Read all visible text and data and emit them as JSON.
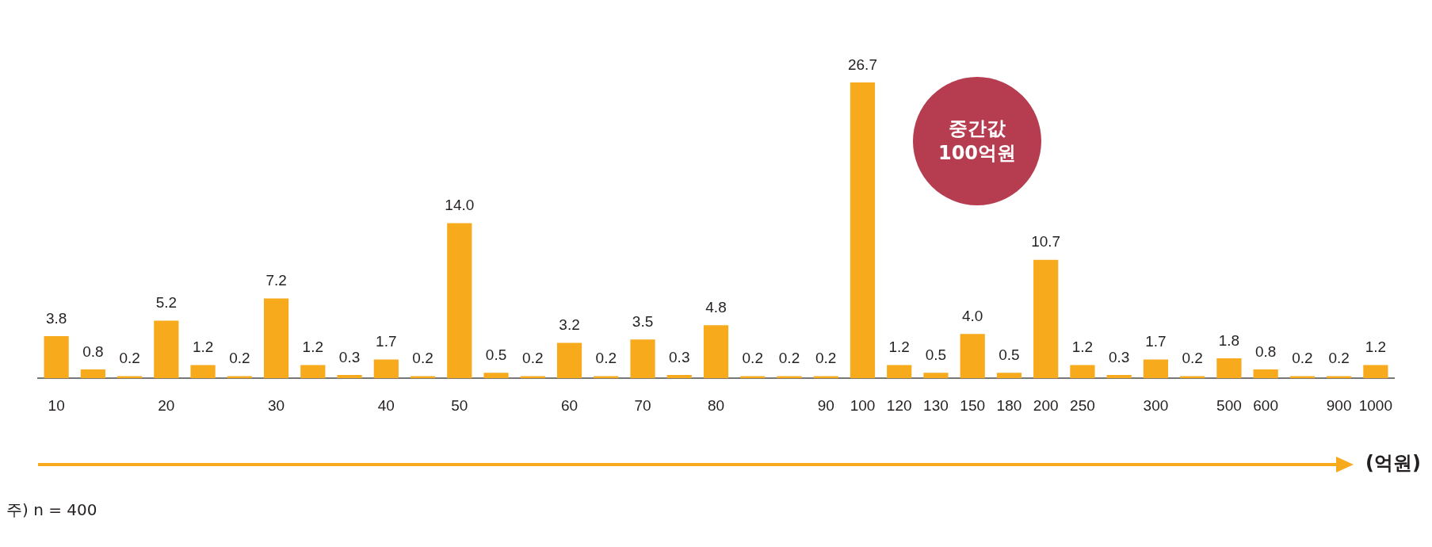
{
  "chart_data": {
    "type": "bar",
    "categories": [
      "10",
      null,
      null,
      "20",
      null,
      null,
      "30",
      null,
      null,
      "40",
      null,
      "50",
      null,
      null,
      "60",
      null,
      "70",
      null,
      "80",
      null,
      null,
      "90",
      "100",
      "120",
      "130",
      "150",
      "180",
      "200",
      "250",
      null,
      "300",
      null,
      "500",
      "600",
      null,
      "900",
      "1000"
    ],
    "values": [
      3.8,
      0.8,
      0.2,
      5.2,
      1.2,
      0.2,
      7.2,
      1.2,
      0.3,
      1.7,
      0.2,
      14.0,
      0.5,
      0.2,
      3.2,
      0.2,
      3.5,
      0.3,
      4.8,
      0.2,
      0.2,
      0.2,
      26.7,
      1.2,
      0.5,
      4.0,
      0.5,
      10.7,
      1.2,
      0.3,
      1.7,
      0.2,
      1.8,
      0.8,
      0.2,
      0.2,
      1.2
    ],
    "value_labels": [
      "3.8",
      "0.8",
      "0.2",
      "5.2",
      "1.2",
      "0.2",
      "7.2",
      "1.2",
      "0.3",
      "1.7",
      "0.2",
      "14.0",
      "0.5",
      "0.2",
      "3.2",
      "0.2",
      "3.5",
      "0.3",
      "4.8",
      "0.2",
      "0.2",
      "0.2",
      "26.7",
      "1.2",
      "0.5",
      "4.0",
      "0.5",
      "10.7",
      "1.2",
      "0.3",
      "1.7",
      "0.2",
      "1.8",
      "0.8",
      "0.2",
      "0.2",
      "1.2"
    ],
    "color": "#f6aa1c",
    "xlabel": "(억원)",
    "grid": false,
    "legend": false,
    "annotations": [
      "중간값 100억원",
      "주) n = 400"
    ]
  }
}
